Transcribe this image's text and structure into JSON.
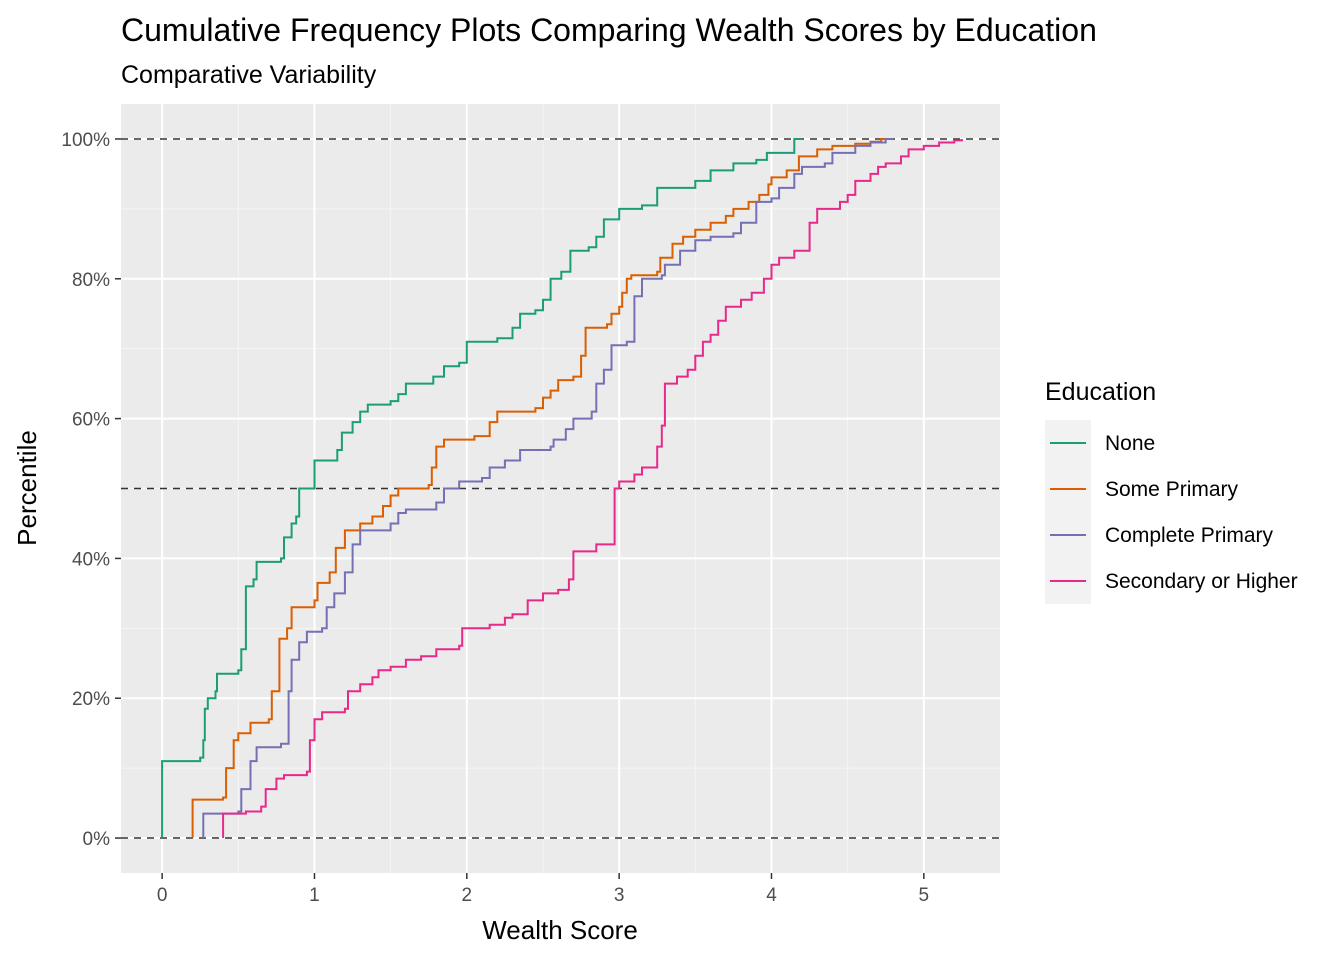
{
  "chart_data": {
    "type": "line",
    "step": true,
    "title": "Cumulative Frequency Plots Comparing Wealth Scores by Education",
    "subtitle": "Comparative Variability",
    "xlabel": "Wealth Score",
    "ylabel": "Percentile",
    "xlim": [
      -0.27,
      5.5
    ],
    "ylim": [
      -5,
      105
    ],
    "x_ticks": [
      0,
      1,
      2,
      3,
      4,
      5
    ],
    "y_ticks": [
      0,
      20,
      40,
      60,
      80,
      100
    ],
    "x_tick_labels": [
      "0",
      "1",
      "2",
      "3",
      "4",
      "5"
    ],
    "y_tick_labels": [
      "0%",
      "20%",
      "40%",
      "60%",
      "80%",
      "100%"
    ],
    "reference_lines": [
      0,
      50,
      100
    ],
    "grid": true,
    "panel_background": "#ebebeb",
    "legend": {
      "title": "Education",
      "position": "right"
    },
    "series": [
      {
        "name": "None",
        "color": "#1b9e77",
        "points": [
          [
            0,
            0
          ],
          [
            0,
            11
          ],
          [
            0.25,
            11.5
          ],
          [
            0.27,
            14
          ],
          [
            0.28,
            18.5
          ],
          [
            0.3,
            20
          ],
          [
            0.35,
            21
          ],
          [
            0.36,
            23.5
          ],
          [
            0.5,
            24
          ],
          [
            0.52,
            27
          ],
          [
            0.55,
            36
          ],
          [
            0.6,
            37
          ],
          [
            0.62,
            39.5
          ],
          [
            0.78,
            40
          ],
          [
            0.8,
            43
          ],
          [
            0.85,
            45
          ],
          [
            0.88,
            46
          ],
          [
            0.9,
            50
          ],
          [
            1.0,
            50.5
          ],
          [
            1.0,
            54
          ],
          [
            1.15,
            55.5
          ],
          [
            1.18,
            58
          ],
          [
            1.25,
            59.5
          ],
          [
            1.3,
            61
          ],
          [
            1.35,
            62
          ],
          [
            1.5,
            62.5
          ],
          [
            1.55,
            63.5
          ],
          [
            1.6,
            65
          ],
          [
            1.78,
            66
          ],
          [
            1.85,
            67.5
          ],
          [
            1.95,
            68
          ],
          [
            2.0,
            71
          ],
          [
            2.2,
            71.5
          ],
          [
            2.3,
            73
          ],
          [
            2.35,
            75
          ],
          [
            2.45,
            75.5
          ],
          [
            2.5,
            77
          ],
          [
            2.55,
            80
          ],
          [
            2.62,
            81
          ],
          [
            2.68,
            84
          ],
          [
            2.8,
            84.5
          ],
          [
            2.85,
            86
          ],
          [
            2.9,
            88.5
          ],
          [
            3.0,
            90
          ],
          [
            3.15,
            90.5
          ],
          [
            3.25,
            93
          ],
          [
            3.5,
            94
          ],
          [
            3.6,
            95.5
          ],
          [
            3.75,
            96.5
          ],
          [
            3.9,
            97
          ],
          [
            3.97,
            98
          ],
          [
            4.15,
            98.5
          ],
          [
            4.15,
            100
          ],
          [
            4.2,
            100
          ]
        ]
      },
      {
        "name": "Some Primary",
        "color": "#d95f02",
        "points": [
          [
            0.2,
            0
          ],
          [
            0.2,
            5.5
          ],
          [
            0.4,
            5.8
          ],
          [
            0.42,
            10
          ],
          [
            0.47,
            14
          ],
          [
            0.5,
            15
          ],
          [
            0.58,
            16.5
          ],
          [
            0.7,
            17
          ],
          [
            0.72,
            21
          ],
          [
            0.77,
            28.5
          ],
          [
            0.82,
            30
          ],
          [
            0.85,
            33
          ],
          [
            1.0,
            34
          ],
          [
            1.02,
            36.5
          ],
          [
            1.1,
            38
          ],
          [
            1.14,
            41.5
          ],
          [
            1.2,
            44
          ],
          [
            1.3,
            45
          ],
          [
            1.38,
            46
          ],
          [
            1.45,
            47.5
          ],
          [
            1.5,
            49
          ],
          [
            1.55,
            50
          ],
          [
            1.75,
            50.5
          ],
          [
            1.77,
            53
          ],
          [
            1.8,
            56
          ],
          [
            1.85,
            57
          ],
          [
            2.05,
            57.5
          ],
          [
            2.15,
            59.5
          ],
          [
            2.2,
            61
          ],
          [
            2.45,
            61.5
          ],
          [
            2.5,
            63
          ],
          [
            2.55,
            64
          ],
          [
            2.6,
            65.5
          ],
          [
            2.7,
            66
          ],
          [
            2.75,
            69
          ],
          [
            2.78,
            73
          ],
          [
            2.92,
            73.5
          ],
          [
            2.95,
            75
          ],
          [
            3.0,
            76
          ],
          [
            3.02,
            78
          ],
          [
            3.05,
            80
          ],
          [
            3.08,
            80.5
          ],
          [
            3.25,
            81
          ],
          [
            3.27,
            83
          ],
          [
            3.35,
            85
          ],
          [
            3.42,
            86
          ],
          [
            3.5,
            87
          ],
          [
            3.6,
            88
          ],
          [
            3.7,
            89
          ],
          [
            3.75,
            90
          ],
          [
            3.85,
            91
          ],
          [
            3.92,
            92
          ],
          [
            3.98,
            93.5
          ],
          [
            4.0,
            94.5
          ],
          [
            4.1,
            95.5
          ],
          [
            4.18,
            97.5
          ],
          [
            4.3,
            98.5
          ],
          [
            4.4,
            99
          ],
          [
            4.55,
            99.3
          ],
          [
            4.65,
            99.6
          ],
          [
            4.72,
            100
          ],
          [
            4.75,
            100
          ]
        ]
      },
      {
        "name": "Complete Primary",
        "color": "#7570b3",
        "points": [
          [
            0.27,
            0
          ],
          [
            0.27,
            3.5
          ],
          [
            0.5,
            3.8
          ],
          [
            0.52,
            7
          ],
          [
            0.58,
            11
          ],
          [
            0.62,
            13
          ],
          [
            0.78,
            13.5
          ],
          [
            0.83,
            21
          ],
          [
            0.85,
            25.5
          ],
          [
            0.9,
            28
          ],
          [
            0.95,
            29.5
          ],
          [
            1.05,
            30
          ],
          [
            1.08,
            33
          ],
          [
            1.13,
            35
          ],
          [
            1.2,
            38
          ],
          [
            1.25,
            42
          ],
          [
            1.3,
            44
          ],
          [
            1.5,
            45
          ],
          [
            1.55,
            46.5
          ],
          [
            1.6,
            47
          ],
          [
            1.8,
            48
          ],
          [
            1.85,
            50
          ],
          [
            1.95,
            51
          ],
          [
            2.1,
            51.5
          ],
          [
            2.15,
            53
          ],
          [
            2.25,
            54
          ],
          [
            2.35,
            55.5
          ],
          [
            2.55,
            56
          ],
          [
            2.57,
            57
          ],
          [
            2.65,
            58.5
          ],
          [
            2.7,
            60
          ],
          [
            2.82,
            61
          ],
          [
            2.85,
            65
          ],
          [
            2.9,
            67
          ],
          [
            2.95,
            70.5
          ],
          [
            3.05,
            71
          ],
          [
            3.1,
            77.5
          ],
          [
            3.15,
            80
          ],
          [
            3.28,
            80.5
          ],
          [
            3.3,
            82
          ],
          [
            3.4,
            84
          ],
          [
            3.5,
            85.5
          ],
          [
            3.6,
            86
          ],
          [
            3.75,
            86.5
          ],
          [
            3.8,
            88
          ],
          [
            3.9,
            91
          ],
          [
            4.0,
            91.5
          ],
          [
            4.05,
            93
          ],
          [
            4.15,
            95
          ],
          [
            4.2,
            96
          ],
          [
            4.35,
            96.5
          ],
          [
            4.4,
            98
          ],
          [
            4.55,
            99
          ],
          [
            4.65,
            99.5
          ],
          [
            4.75,
            100
          ],
          [
            4.8,
            100
          ]
        ]
      },
      {
        "name": "Secondary or Higher",
        "color": "#e7298a",
        "points": [
          [
            0.4,
            0
          ],
          [
            0.4,
            3.5
          ],
          [
            0.55,
            3.8
          ],
          [
            0.65,
            4.5
          ],
          [
            0.68,
            7
          ],
          [
            0.75,
            8.5
          ],
          [
            0.8,
            9
          ],
          [
            0.95,
            9.5
          ],
          [
            0.97,
            14
          ],
          [
            1.0,
            17
          ],
          [
            1.05,
            18
          ],
          [
            1.2,
            18.5
          ],
          [
            1.22,
            21
          ],
          [
            1.3,
            22
          ],
          [
            1.38,
            23
          ],
          [
            1.42,
            24
          ],
          [
            1.5,
            24.5
          ],
          [
            1.6,
            25.5
          ],
          [
            1.7,
            26
          ],
          [
            1.8,
            27
          ],
          [
            1.95,
            27.5
          ],
          [
            1.97,
            30
          ],
          [
            2.15,
            30.5
          ],
          [
            2.25,
            31.5
          ],
          [
            2.3,
            32
          ],
          [
            2.4,
            34
          ],
          [
            2.5,
            35
          ],
          [
            2.6,
            35.5
          ],
          [
            2.67,
            37
          ],
          [
            2.7,
            41
          ],
          [
            2.85,
            42
          ],
          [
            2.97,
            42.5
          ],
          [
            2.97,
            50
          ],
          [
            3.0,
            51
          ],
          [
            3.1,
            52
          ],
          [
            3.15,
            53
          ],
          [
            3.25,
            56
          ],
          [
            3.28,
            59
          ],
          [
            3.3,
            65
          ],
          [
            3.38,
            66
          ],
          [
            3.45,
            67
          ],
          [
            3.5,
            69
          ],
          [
            3.55,
            71
          ],
          [
            3.6,
            72
          ],
          [
            3.65,
            74
          ],
          [
            3.7,
            76
          ],
          [
            3.8,
            77
          ],
          [
            3.87,
            78
          ],
          [
            3.95,
            80
          ],
          [
            4.0,
            82
          ],
          [
            4.05,
            83
          ],
          [
            4.15,
            84
          ],
          [
            4.25,
            88
          ],
          [
            4.3,
            90
          ],
          [
            4.45,
            91
          ],
          [
            4.5,
            92
          ],
          [
            4.55,
            94
          ],
          [
            4.65,
            95
          ],
          [
            4.7,
            96
          ],
          [
            4.75,
            96.5
          ],
          [
            4.85,
            97.5
          ],
          [
            4.9,
            98.5
          ],
          [
            5.0,
            99
          ],
          [
            5.1,
            99.5
          ],
          [
            5.2,
            99.8
          ],
          [
            5.25,
            100
          ]
        ]
      }
    ]
  }
}
